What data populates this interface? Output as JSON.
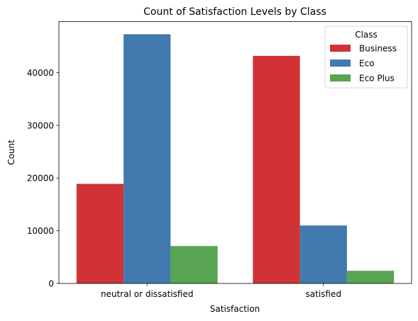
{
  "chart_data": {
    "type": "bar",
    "title": "Count of Satisfaction Levels by Class",
    "xlabel": "Satisfaction",
    "ylabel": "Count",
    "categories": [
      "neutral or dissatisfied",
      "satisfied"
    ],
    "series": [
      {
        "name": "Business",
        "color": "#d03235",
        "values": [
          18900,
          43200
        ]
      },
      {
        "name": "Eco",
        "color": "#4279ae",
        "values": [
          47300,
          11000
        ]
      },
      {
        "name": "Eco Plus",
        "color": "#58a452",
        "values": [
          7100,
          2400
        ]
      }
    ],
    "yticks": [
      0,
      10000,
      20000,
      30000,
      40000
    ],
    "ylim": [
      0,
      49700
    ],
    "grid": false,
    "legend": {
      "title": "Class",
      "placement": "top-right"
    }
  }
}
